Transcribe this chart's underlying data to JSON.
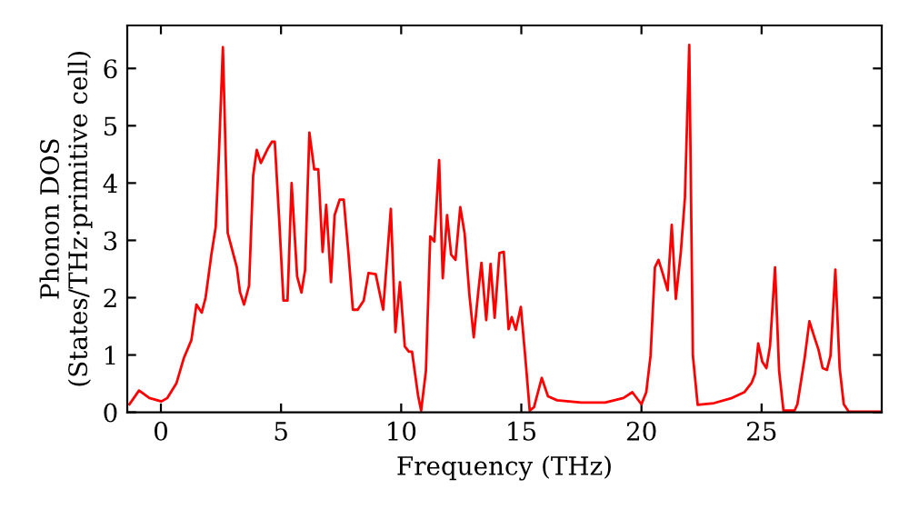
{
  "chart_data": {
    "type": "line",
    "xlabel": "Frequency (THz)",
    "ylabel": "Phonon DOS\n(States/THz·primitive cell)",
    "xlim": [
      -1.4,
      30
    ],
    "ylim": [
      0,
      6.75
    ],
    "xticks": [
      0,
      5,
      10,
      15,
      20,
      25
    ],
    "yticks": [
      0,
      1,
      2,
      3,
      4,
      5,
      6
    ],
    "grid": false,
    "marker": "none",
    "line_style": "solid",
    "series": [
      {
        "color": "#ff0000",
        "x": [
          -1.31,
          -0.91,
          -0.48,
          0.02,
          0.27,
          0.65,
          0.95,
          1.27,
          1.48,
          1.7,
          1.86,
          2.1,
          2.28,
          2.41,
          2.58,
          2.78,
          3.16,
          3.29,
          3.46,
          3.67,
          3.84,
          3.99,
          4.16,
          4.46,
          4.62,
          4.74,
          4.92,
          5.1,
          5.27,
          5.44,
          5.67,
          5.85,
          6.0,
          6.18,
          6.38,
          6.55,
          6.73,
          6.88,
          7.08,
          7.23,
          7.44,
          7.61,
          7.81,
          7.99,
          8.19,
          8.44,
          8.64,
          8.94,
          9.25,
          9.57,
          9.76,
          9.95,
          10.15,
          10.32,
          10.45,
          10.7,
          10.83,
          11.03,
          11.21,
          11.38,
          11.58,
          11.73,
          11.91,
          12.08,
          12.26,
          12.46,
          12.64,
          12.84,
          13.02,
          13.21,
          13.34,
          13.54,
          13.72,
          13.89,
          14.09,
          14.27,
          14.47,
          14.6,
          14.77,
          14.98,
          15.17,
          15.35,
          15.53,
          15.85,
          16.11,
          16.49,
          17.49,
          18.49,
          19.25,
          19.62,
          20.0,
          20.2,
          20.38,
          20.56,
          20.71,
          20.88,
          21.09,
          21.26,
          21.43,
          21.64,
          21.81,
          21.99,
          22.14,
          22.34,
          23.02,
          23.77,
          24.28,
          24.58,
          24.73,
          24.86,
          25.03,
          25.2,
          25.35,
          25.56,
          25.73,
          25.91,
          26.37,
          26.49,
          26.79,
          26.99,
          27.16,
          27.37,
          27.54,
          27.72,
          27.87,
          28.07,
          28.25,
          28.42,
          28.63,
          29.93
        ],
        "values": [
          0.14,
          0.38,
          0.25,
          0.19,
          0.25,
          0.51,
          0.94,
          1.26,
          1.88,
          1.74,
          2.0,
          2.75,
          3.23,
          4.45,
          6.37,
          3.13,
          2.53,
          2.1,
          1.88,
          2.21,
          4.13,
          4.58,
          4.35,
          4.61,
          4.72,
          4.72,
          3.39,
          1.95,
          1.95,
          4.0,
          2.37,
          2.09,
          2.48,
          4.88,
          4.24,
          4.24,
          2.8,
          3.62,
          2.27,
          3.44,
          3.71,
          3.71,
          2.75,
          1.79,
          1.79,
          1.95,
          2.43,
          2.41,
          1.79,
          3.55,
          1.4,
          2.27,
          1.15,
          1.06,
          1.06,
          0.3,
          0.03,
          0.72,
          3.07,
          2.98,
          4.4,
          2.34,
          3.44,
          2.75,
          2.66,
          3.58,
          3.12,
          2.05,
          1.31,
          2.11,
          2.61,
          1.61,
          2.59,
          1.65,
          2.78,
          2.8,
          1.45,
          1.66,
          1.44,
          1.84,
          0.94,
          0.03,
          0.09,
          0.6,
          0.28,
          0.21,
          0.17,
          0.17,
          0.25,
          0.35,
          0.14,
          0.35,
          0.99,
          2.53,
          2.66,
          2.43,
          2.13,
          3.27,
          1.98,
          2.8,
          3.75,
          6.41,
          0.99,
          0.13,
          0.16,
          0.25,
          0.35,
          0.51,
          0.67,
          1.2,
          0.88,
          0.77,
          1.15,
          2.53,
          0.72,
          0.03,
          0.03,
          0.14,
          0.94,
          1.59,
          1.36,
          1.09,
          0.77,
          0.74,
          0.99,
          2.49,
          0.77,
          0.14,
          0.01,
          0.01
        ]
      }
    ]
  }
}
